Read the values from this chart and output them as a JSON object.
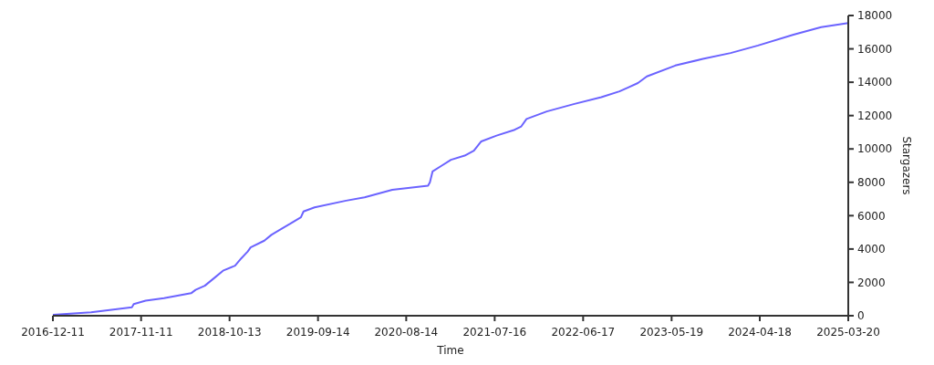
{
  "chart_data": {
    "type": "line",
    "xlabel": "Time",
    "ylabel": "Stargazers",
    "x": [
      "2016-12-11",
      "2017-05-05",
      "2017-10-07",
      "2017-10-14",
      "2017-11-28",
      "2018-02-06",
      "2018-05-20",
      "2018-06-06",
      "2018-07-11",
      "2018-08-15",
      "2018-09-18",
      "2018-11-03",
      "2018-11-27",
      "2018-12-21",
      "2019-01-01",
      "2019-02-22",
      "2019-03-21",
      "2019-05-02",
      "2019-05-30",
      "2019-07-11",
      "2019-07-21",
      "2019-09-01",
      "2019-12-30",
      "2020-03-09",
      "2020-06-22",
      "2020-11-05",
      "2020-11-12",
      "2020-11-22",
      "2020-12-27",
      "2021-01-31",
      "2021-03-24",
      "2021-04-28",
      "2021-05-26",
      "2021-07-23",
      "2021-09-30",
      "2021-10-25",
      "2021-11-14",
      "2022-01-30",
      "2022-05-15",
      "2022-08-25",
      "2022-11-02",
      "2022-12-07",
      "2023-01-11",
      "2023-02-14",
      "2023-06-02",
      "2023-09-15",
      "2023-12-29",
      "2024-04-11",
      "2024-08-24",
      "2024-12-07",
      "2025-03-20"
    ],
    "series": [
      {
        "color": "#6b63ff",
        "values": [
          50,
          200,
          500,
          700,
          900,
          1050,
          1350,
          1550,
          1800,
          2250,
          2700,
          3000,
          3450,
          3850,
          4100,
          4500,
          4850,
          5250,
          5500,
          5900,
          6250,
          6500,
          6900,
          7100,
          7550,
          7800,
          8000,
          8650,
          9000,
          9350,
          9600,
          9900,
          10450,
          10800,
          11150,
          11350,
          11800,
          12250,
          12700,
          13100,
          13450,
          13700,
          13950,
          14350,
          15000,
          15400,
          15750,
          16200,
          16850,
          17300,
          17550
        ]
      }
    ],
    "xlim": [
      "2016-12-11",
      "2025-03-20"
    ],
    "xticks": [
      "2016-12-11",
      "2017-11-11",
      "2018-10-13",
      "2019-09-14",
      "2020-08-14",
      "2021-07-16",
      "2022-06-17",
      "2023-05-19",
      "2024-04-18",
      "2025-03-20"
    ],
    "ylim": [
      0,
      18000
    ],
    "yticks": [
      0,
      2000,
      4000,
      6000,
      8000,
      10000,
      12000,
      14000,
      16000,
      18000
    ],
    "marker": "none",
    "line_style": "solid",
    "grid": false
  }
}
